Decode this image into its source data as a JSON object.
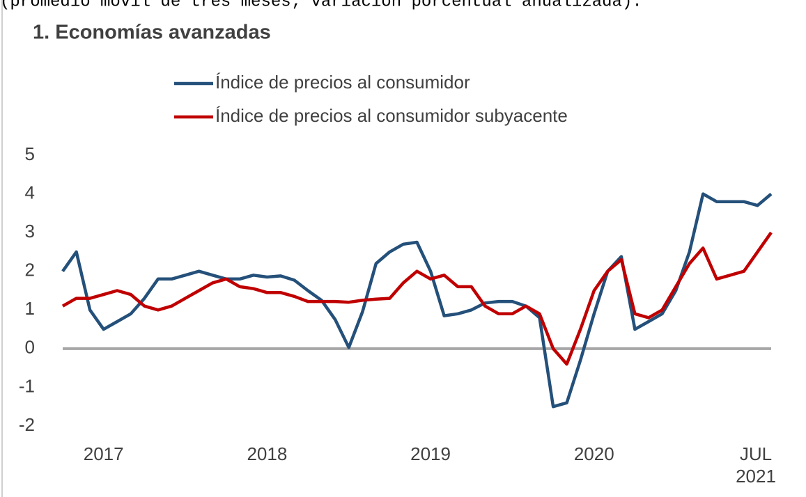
{
  "chart_data": {
    "type": "line",
    "note_top": "(promedio móvil de tres meses; variación porcentual anualizada).",
    "title": "1. Economías avanzadas",
    "categories": [
      null,
      null,
      null,
      "2017",
      null,
      null,
      null,
      null,
      null,
      null,
      null,
      null,
      null,
      null,
      null,
      "2018",
      null,
      null,
      null,
      null,
      null,
      null,
      null,
      null,
      null,
      null,
      null,
      "2019",
      null,
      null,
      null,
      null,
      null,
      null,
      null,
      null,
      null,
      null,
      null,
      "2020",
      null,
      null,
      null,
      null,
      null,
      null,
      null,
      null,
      null,
      null,
      null,
      null,
      "JUL 2021"
    ],
    "series": [
      {
        "name": "Índice de precios al consumidor",
        "color": "#24507a",
        "values": [
          2.0,
          2.5,
          1.0,
          0.5,
          0.7,
          0.9,
          1.3,
          1.8,
          1.8,
          1.9,
          2.0,
          1.9,
          1.8,
          1.8,
          1.9,
          1.85,
          1.88,
          1.77,
          1.5,
          1.25,
          0.75,
          0.03,
          0.95,
          2.2,
          2.5,
          2.7,
          2.75,
          2.0,
          0.85,
          0.9,
          1.0,
          1.18,
          1.22,
          1.22,
          1.1,
          0.8,
          -1.5,
          -1.4,
          -0.3,
          0.9,
          2.0,
          2.38,
          0.5,
          0.7,
          0.9,
          1.5,
          2.5,
          4.0,
          3.8,
          3.8,
          3.8,
          3.7,
          4.0
        ]
      },
      {
        "name": "Índice de precios al consumidor subyacente",
        "color": "#c00000",
        "values": [
          1.1,
          1.3,
          1.3,
          1.4,
          1.5,
          1.4,
          1.1,
          1.0,
          1.1,
          1.3,
          1.5,
          1.7,
          1.8,
          1.6,
          1.55,
          1.45,
          1.45,
          1.35,
          1.22,
          1.22,
          1.22,
          1.2,
          1.25,
          1.28,
          1.3,
          1.7,
          2.0,
          1.8,
          1.9,
          1.6,
          1.6,
          1.1,
          0.9,
          0.9,
          1.1,
          0.9,
          0.0,
          -0.4,
          0.5,
          1.5,
          2.0,
          2.3,
          0.9,
          0.8,
          1.0,
          1.6,
          2.2,
          2.6,
          1.8,
          1.9,
          2.0,
          2.5,
          3.0
        ]
      }
    ],
    "ylim": [
      -2,
      5
    ],
    "yticks": [
      -2,
      -1,
      0,
      1,
      2,
      3,
      4,
      5
    ],
    "grid": false,
    "legend": "top"
  }
}
